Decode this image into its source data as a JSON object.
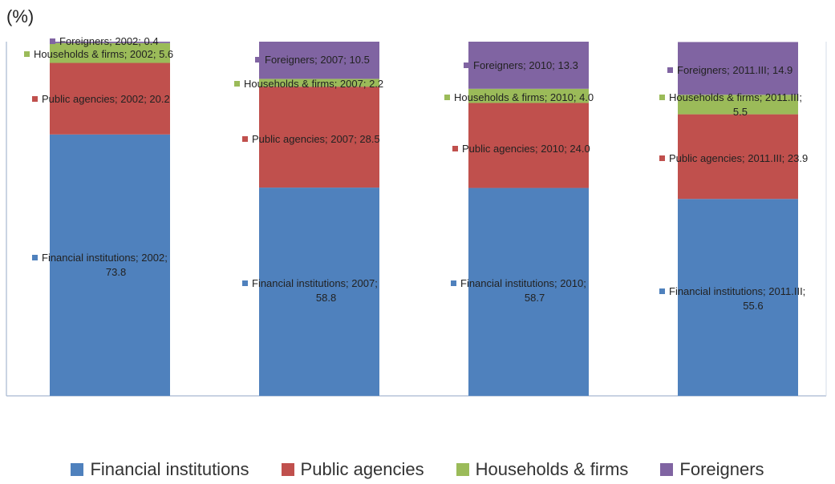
{
  "chart_data": {
    "type": "bar",
    "stacked": true,
    "unit_label": "(%)",
    "categories": [
      "2002",
      "2007",
      "2010",
      "2011.III"
    ],
    "series": [
      {
        "name": "Financial institutions",
        "color": "#4F81BD",
        "values": [
          73.8,
          58.8,
          58.7,
          55.6
        ]
      },
      {
        "name": "Public agencies",
        "color": "#C0504D",
        "values": [
          20.2,
          28.5,
          24.0,
          23.9
        ]
      },
      {
        "name": "Households & firms",
        "color": "#9BBB59",
        "values": [
          5.6,
          2.2,
          4.0,
          5.5
        ]
      },
      {
        "name": "Foreigners",
        "color": "#8064A2",
        "values": [
          0.4,
          10.5,
          13.3,
          14.9
        ]
      }
    ],
    "data_labels": [
      [
        "Financial institutions; 2002; 73.8",
        "Public agencies; 2002; 20.2",
        "Households & firms; 2002; 5.6",
        "Foreigners; 2002; 0.4"
      ],
      [
        "Financial institutions; 2007; 58.8",
        "Public agencies; 2007; 28.5",
        "Households & firms; 2007; 2.2",
        "Foreigners; 2007; 10.5"
      ],
      [
        "Financial institutions; 2010; 58.7",
        "Public agencies; 2010; 24.0",
        "Households & firms; 2010; 4.0",
        "Foreigners; 2010; 13.3"
      ],
      [
        "Financial institutions; 2011.III; 55.6",
        "Public agencies; 2011.III; 23.9",
        "Households & firms; 2011.III; 5.5",
        "Foreigners; 2011.III; 14.9"
      ]
    ],
    "ylim": [
      0,
      100
    ],
    "grid": false,
    "legend_position": "bottom"
  }
}
